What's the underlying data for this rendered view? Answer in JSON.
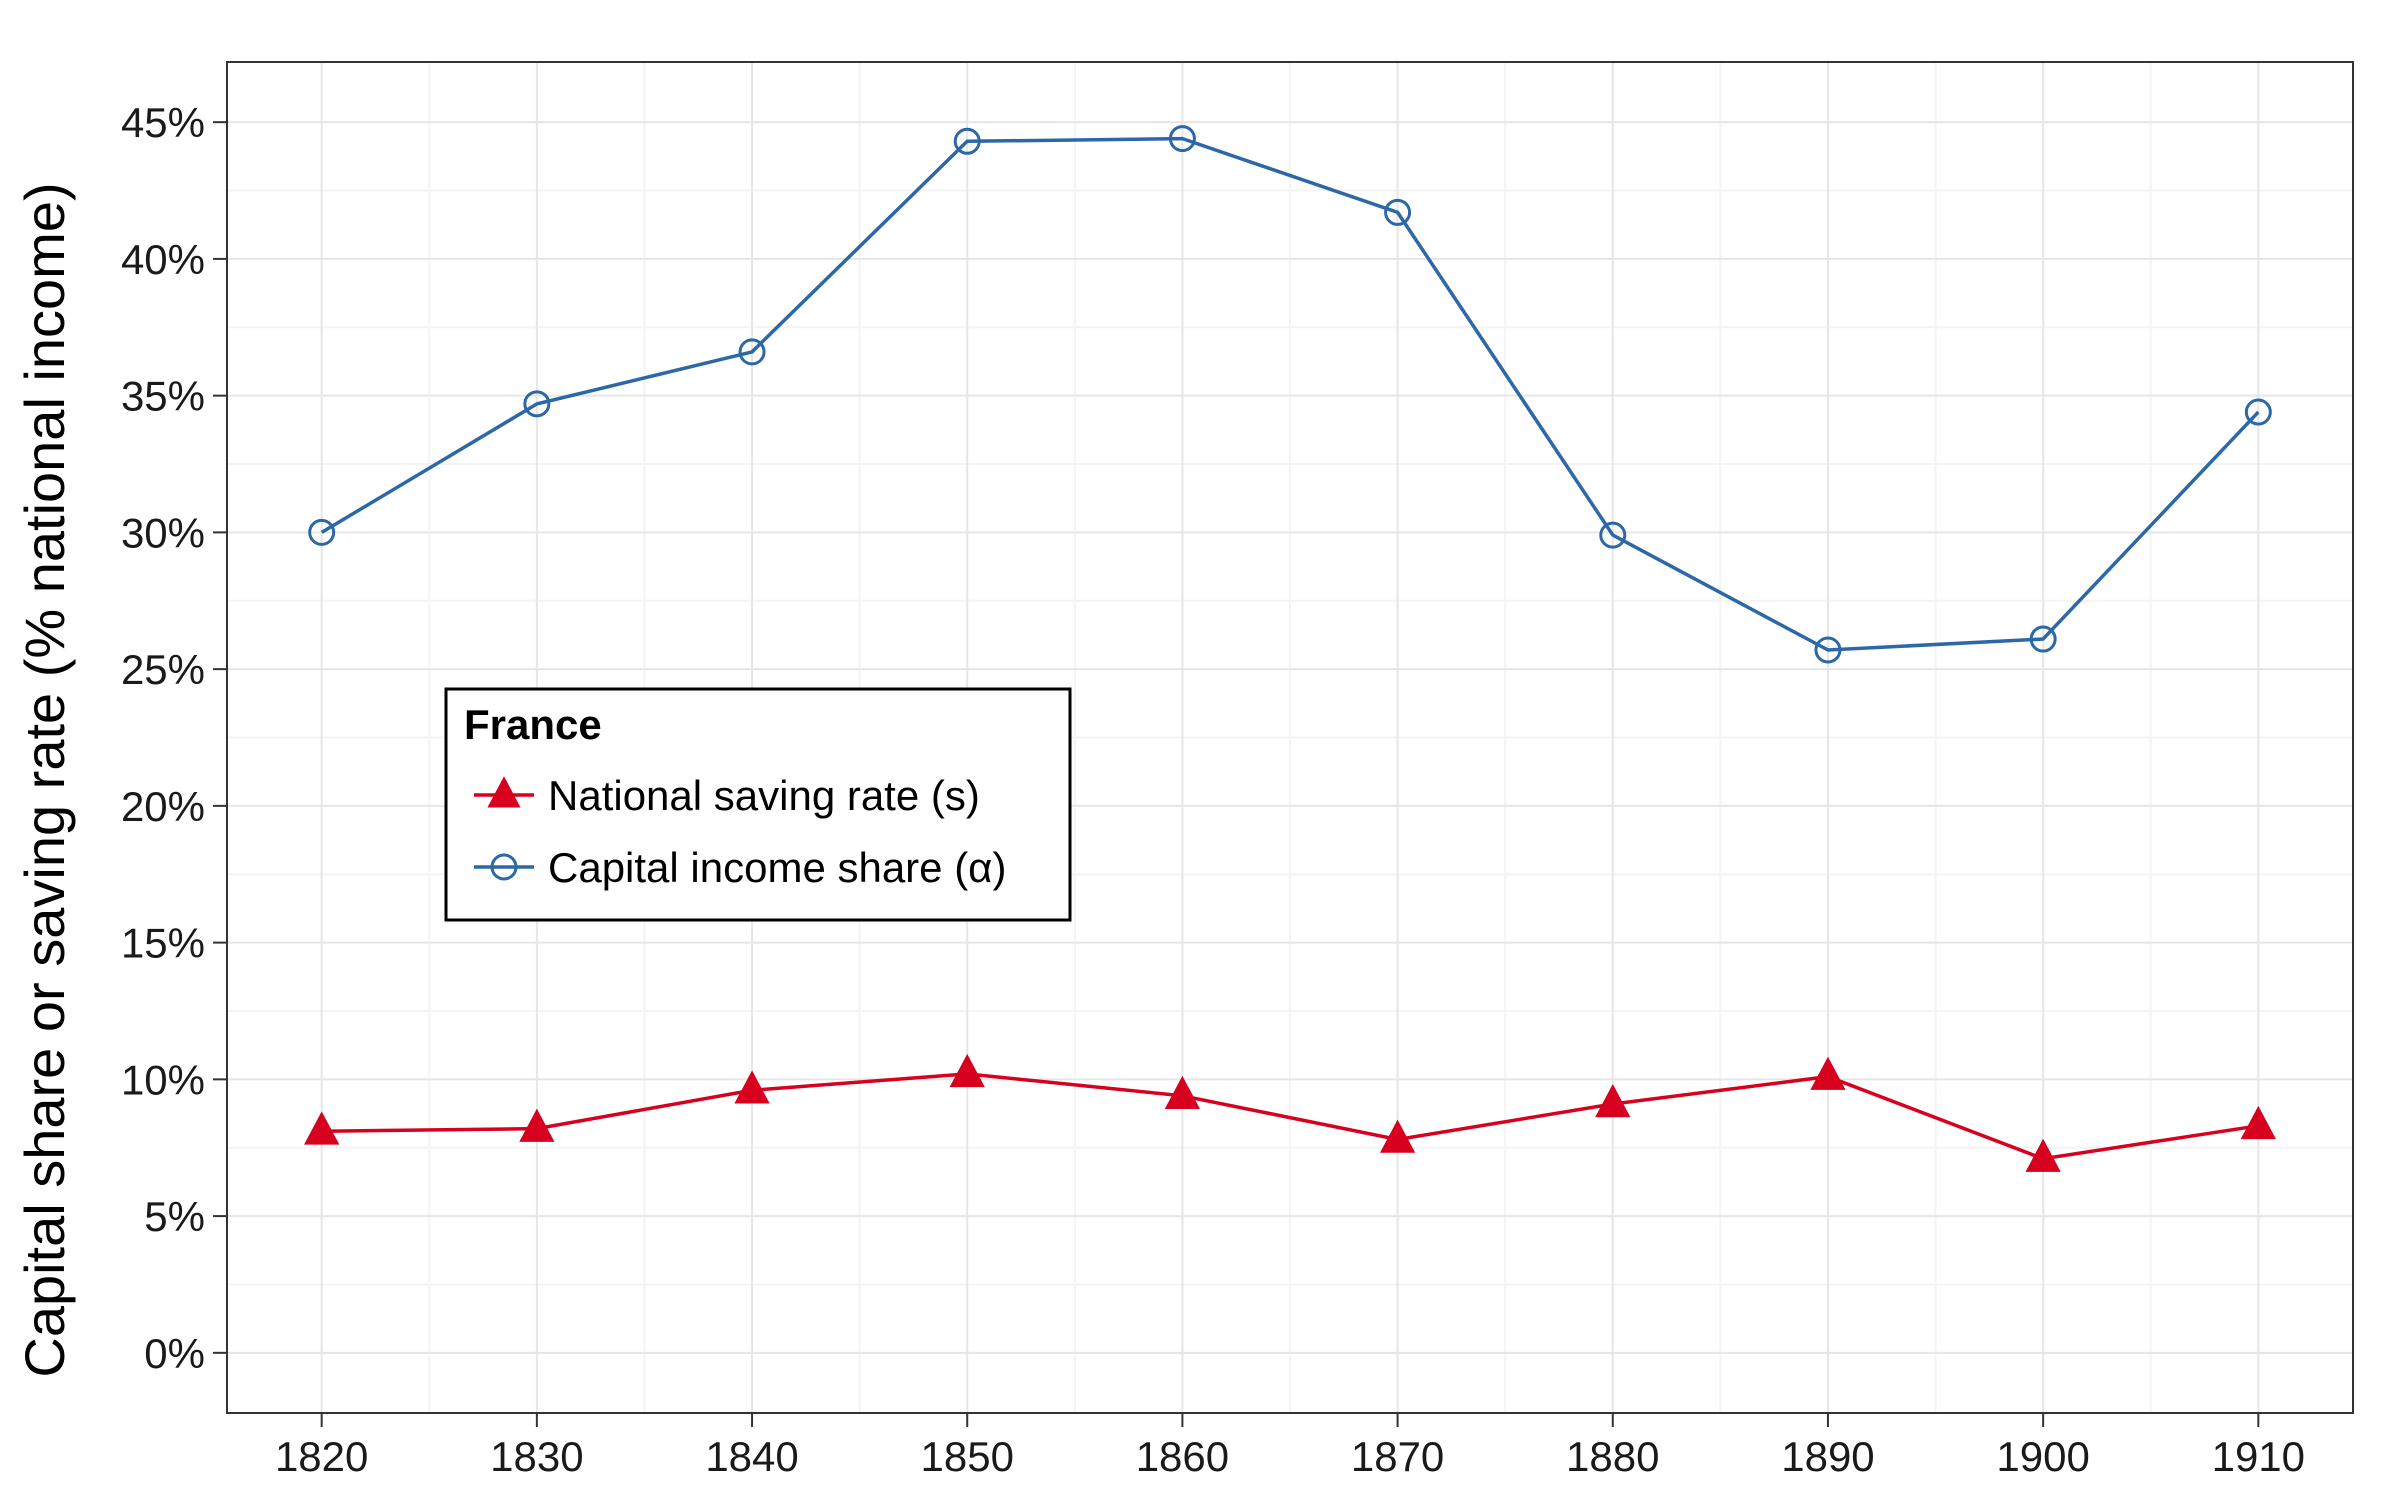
{
  "chart_data": {
    "type": "line",
    "xlabel": "",
    "ylabel": "Capital share or saving rate (% national income)",
    "x": [
      1820,
      1830,
      1840,
      1850,
      1860,
      1870,
      1880,
      1890,
      1900,
      1910
    ],
    "x_tick_labels": [
      "1820",
      "1830",
      "1840",
      "1850",
      "1860",
      "1870",
      "1880",
      "1890",
      "1900",
      "1910"
    ],
    "y_ticks": [
      0,
      5,
      10,
      15,
      20,
      25,
      30,
      35,
      40,
      45
    ],
    "y_tick_labels": [
      "0%",
      "5%",
      "10%",
      "15%",
      "20%",
      "25%",
      "30%",
      "35%",
      "40%",
      "45%"
    ],
    "xlim": [
      1815.6,
      1914.4
    ],
    "ylim": [
      -2.2,
      47.2
    ],
    "grid": true,
    "legend": {
      "title": "France",
      "placement": "center-left",
      "entries": [
        {
          "label": "National saving rate (s)",
          "series": 0
        },
        {
          "label": "Capital income share (α)",
          "series": 1
        }
      ]
    },
    "series": [
      {
        "name": "National saving rate (s)",
        "color": "#d7001f",
        "marker": "filled-triangle",
        "values": [
          8.1,
          8.2,
          9.6,
          10.2,
          9.4,
          7.8,
          9.1,
          10.1,
          7.1,
          8.3
        ]
      },
      {
        "name": "Capital income share (α)",
        "color": "#2c67a8",
        "marker": "open-circle",
        "values": [
          30.0,
          34.7,
          36.6,
          44.3,
          44.4,
          41.7,
          29.9,
          25.7,
          26.1,
          34.4
        ]
      }
    ]
  },
  "colors": {
    "panel_border": "#333333",
    "grid_major": "#e6e6e6",
    "grid_minor": "#f4f4f4",
    "axis_tick": "#333333"
  }
}
